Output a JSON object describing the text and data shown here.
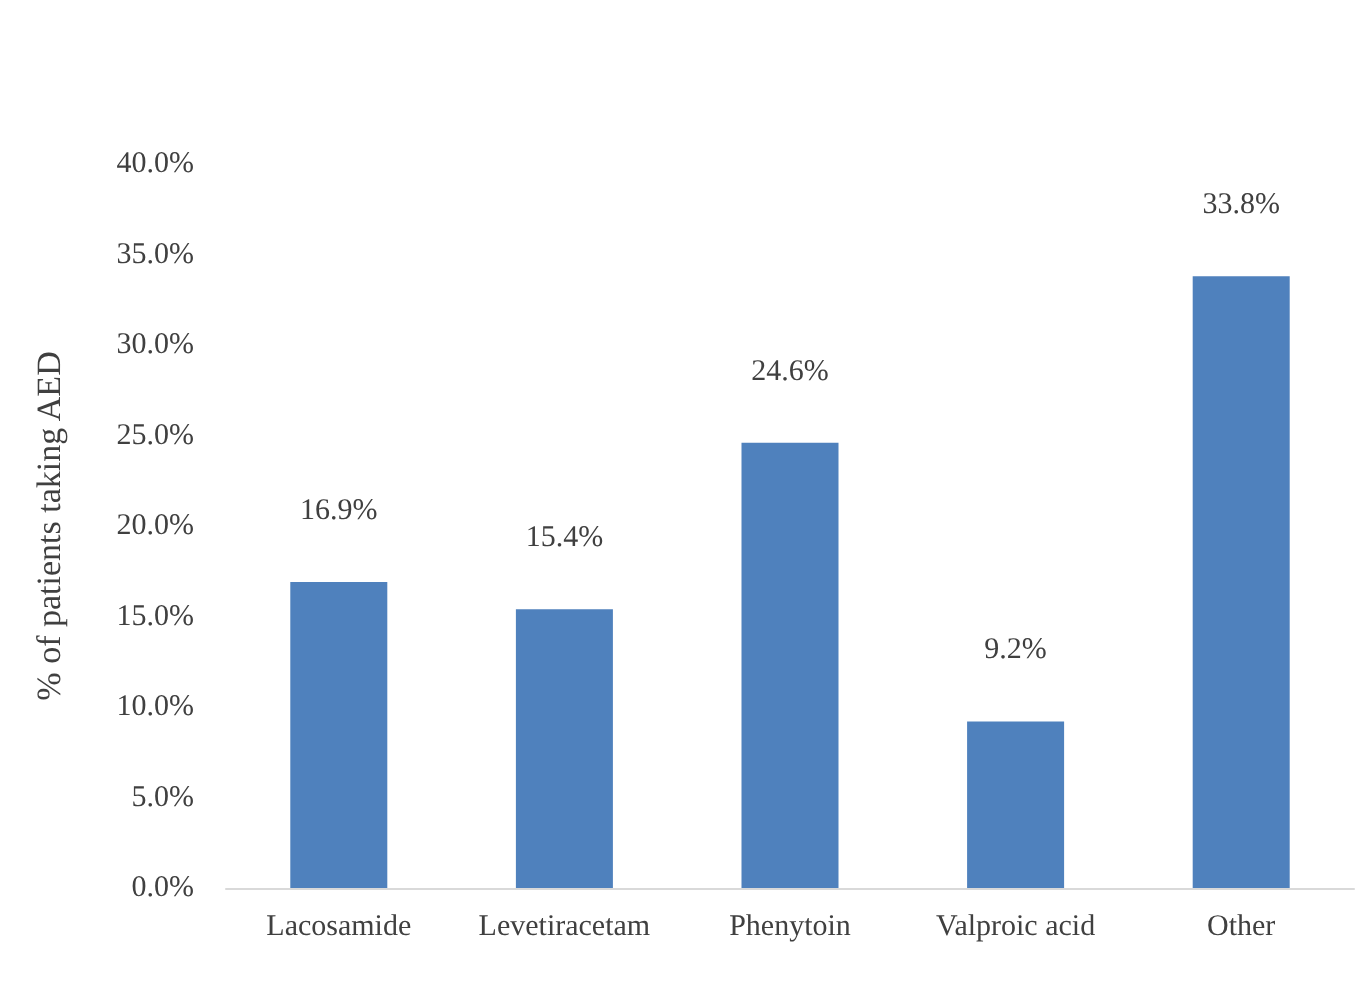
{
  "chart_data": {
    "type": "bar",
    "ylabel": "% of patients taking AED",
    "categories": [
      "Lacosamide",
      "Levetiracetam",
      "Phenytoin",
      "Valproic acid",
      "Other"
    ],
    "values": [
      16.9,
      15.4,
      24.6,
      9.2,
      33.8
    ],
    "value_labels": [
      "16.9%",
      "15.4%",
      "24.6%",
      "9.2%",
      "33.8%"
    ],
    "color": "#4f81bd",
    "ylim": [
      0,
      40
    ],
    "yticks": [
      {
        "value": 0,
        "label": "0.0%"
      },
      {
        "value": 5,
        "label": "5.0%"
      },
      {
        "value": 10,
        "label": "10.0%"
      },
      {
        "value": 15,
        "label": "15.0%"
      },
      {
        "value": 20,
        "label": "20.0%"
      },
      {
        "value": 25,
        "label": "25.0%"
      },
      {
        "value": 30,
        "label": "30.0%"
      },
      {
        "value": 35,
        "label": "35.0%"
      },
      {
        "value": 40,
        "label": "40.0%"
      }
    ],
    "grid": false
  }
}
